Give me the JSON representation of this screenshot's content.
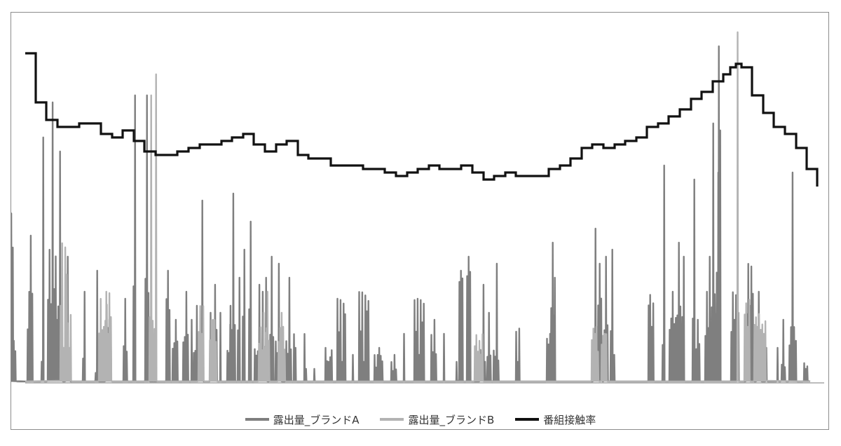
{
  "chart_data": {
    "type": "line",
    "title": "",
    "xlabel": "",
    "ylabel": "",
    "grid": false,
    "legend_position": "bottom",
    "axes_labels_shown": false,
    "ylim": [
      0,
      100
    ],
    "series": [
      {
        "name": "露出量_ブランドA",
        "color": "#7f7f7f",
        "style": "spiky",
        "bursts": [
          [
            5,
            8,
            22,
            50
          ],
          [
            3,
            16,
            12,
            14
          ],
          [
            4,
            38,
            42,
            26
          ],
          [
            2,
            58,
            70,
            10
          ],
          [
            6,
            67,
            80,
            38
          ],
          [
            4,
            75,
            18,
            22
          ],
          [
            3,
            82,
            66,
            6
          ],
          [
            3,
            93,
            36,
            16
          ],
          [
            2,
            117,
            26,
            10
          ],
          [
            2,
            135,
            32,
            4
          ],
          [
            4,
            150,
            18,
            16
          ],
          [
            3,
            175,
            24,
            14
          ],
          [
            2,
            189,
            82,
            36
          ],
          [
            3,
            206,
            82,
            38
          ],
          [
            3,
            236,
            32,
            30
          ],
          [
            4,
            245,
            18,
            12
          ],
          [
            4,
            260,
            26,
            14
          ],
          [
            1,
            272,
            18,
            8
          ],
          [
            4,
            275,
            22,
            10
          ],
          [
            2,
            285,
            52,
            10
          ],
          [
            1,
            299,
            20,
            22
          ],
          [
            4,
            301,
            28,
            16
          ],
          [
            1,
            313,
            20,
            26
          ],
          [
            5,
            323,
            22,
            10
          ],
          [
            4,
            327,
            54,
            18
          ],
          [
            2,
            338,
            30,
            16
          ],
          [
            2,
            345,
            38,
            20
          ],
          [
            2,
            354,
            46,
            22
          ],
          [
            6,
            362,
            28,
            10
          ],
          [
            5,
            369,
            26,
            12
          ],
          [
            2,
            376,
            30,
            10
          ],
          [
            3,
            384,
            36,
            14
          ],
          [
            4,
            392,
            34,
            12
          ],
          [
            4,
            407,
            30,
            12
          ],
          [
            2,
            418,
            10,
            14
          ],
          [
            2,
            433,
            4,
            14
          ],
          [
            1,
            447,
            4,
            0
          ],
          [
            5,
            463,
            6,
            10
          ],
          [
            6,
            480,
            6,
            24
          ],
          [
            1,
            502,
            8,
            4
          ],
          [
            7,
            511,
            6,
            26
          ],
          [
            6,
            533,
            10,
            8
          ],
          [
            4,
            557,
            8,
            6
          ],
          [
            1,
            575,
            14,
            0
          ],
          [
            7,
            590,
            8,
            24
          ],
          [
            4,
            614,
            18,
            14
          ],
          [
            1,
            632,
            14,
            22
          ],
          [
            1,
            650,
            6,
            4
          ],
          [
            3,
            654,
            32,
            30
          ],
          [
            3,
            665,
            36,
            32
          ],
          [
            4,
            684,
            28,
            10
          ],
          [
            3,
            694,
            20,
            8
          ],
          [
            4,
            703,
            34,
            10
          ],
          [
            3,
            735,
            6,
            16
          ],
          [
            4,
            779,
            14,
            14
          ],
          [
            2,
            785,
            40,
            24
          ],
          [
            2,
            788,
            30,
            22
          ],
          [
            2,
            846,
            44,
            12
          ],
          [
            3,
            852,
            34,
            26
          ],
          [
            3,
            861,
            36,
            18
          ],
          [
            2,
            870,
            38,
            18
          ],
          [
            1,
            875,
            8,
            8
          ],
          [
            4,
            924,
            16,
            28
          ],
          [
            2,
            944,
            62,
            14
          ],
          [
            5,
            954,
            26,
            20
          ],
          [
            3,
            965,
            40,
            26
          ],
          [
            2,
            972,
            36,
            26
          ],
          [
            2,
            987,
            58,
            26
          ],
          [
            3,
            992,
            18,
            14
          ],
          [
            2,
            1005,
            26,
            20
          ],
          [
            2,
            1009,
            36,
            24
          ],
          [
            3,
            1014,
            74,
            34
          ],
          [
            4,
            1019,
            60,
            32
          ],
          [
            2,
            1022,
            96,
            16
          ],
          [
            2,
            1024,
            72,
            18
          ],
          [
            4,
            1042,
            18,
            26
          ],
          [
            2,
            1050,
            20,
            16
          ],
          [
            5,
            1064,
            22,
            34
          ],
          [
            3,
            1079,
            26,
            24
          ],
          [
            1,
            1092,
            10,
            8
          ],
          [
            1,
            1108,
            10,
            10
          ],
          [
            3,
            1114,
            18,
            8
          ],
          [
            4,
            1125,
            60,
            16
          ],
          [
            2,
            1132,
            12,
            10
          ],
          [
            3,
            1146,
            4,
            8
          ]
        ]
      },
      {
        "name": "露出量_ブランドB",
        "color": "#b3b3b3",
        "style": "spiky",
        "bursts": [
          [
            5,
            85,
            10,
            40
          ],
          [
            3,
            95,
            10,
            30
          ],
          [
            6,
            140,
            16,
            24
          ],
          [
            5,
            148,
            14,
            26
          ],
          [
            3,
            212,
            82,
            30
          ],
          [
            2,
            219,
            88,
            24
          ],
          [
            4,
            282,
            14,
            22
          ],
          [
            5,
            298,
            18,
            18
          ],
          [
            7,
            368,
            20,
            16
          ],
          [
            3,
            378,
            26,
            20
          ],
          [
            5,
            396,
            20,
            16
          ],
          [
            6,
            676,
            12,
            14
          ],
          [
            5,
            843,
            14,
            16
          ],
          [
            4,
            857,
            14,
            14
          ],
          [
            1,
            1051,
            100,
            10
          ],
          [
            4,
            1061,
            16,
            24
          ],
          [
            5,
            1075,
            16,
            20
          ],
          [
            4,
            1084,
            14,
            18
          ]
        ]
      },
      {
        "name": "番組接触率",
        "color": "#111111",
        "style": "step",
        "points": [
          [
            35,
            94
          ],
          [
            50,
            80
          ],
          [
            65,
            75
          ],
          [
            81,
            73
          ],
          [
            97,
            73
          ],
          [
            112,
            74
          ],
          [
            128,
            74
          ],
          [
            143,
            71
          ],
          [
            159,
            70
          ],
          [
            174,
            72
          ],
          [
            190,
            69
          ],
          [
            205,
            66
          ],
          [
            221,
            65
          ],
          [
            237,
            65
          ],
          [
            252,
            66
          ],
          [
            268,
            67
          ],
          [
            284,
            68
          ],
          [
            299,
            68
          ],
          [
            315,
            69
          ],
          [
            330,
            70
          ],
          [
            346,
            71
          ],
          [
            361,
            68
          ],
          [
            377,
            66
          ],
          [
            393,
            68
          ],
          [
            408,
            69
          ],
          [
            424,
            65
          ],
          [
            439,
            64
          ],
          [
            455,
            64
          ],
          [
            471,
            62
          ],
          [
            486,
            62
          ],
          [
            502,
            62
          ],
          [
            517,
            61
          ],
          [
            533,
            61
          ],
          [
            548,
            60
          ],
          [
            564,
            59
          ],
          [
            580,
            60
          ],
          [
            595,
            61
          ],
          [
            611,
            62
          ],
          [
            626,
            61
          ],
          [
            642,
            61
          ],
          [
            657,
            62
          ],
          [
            673,
            60
          ],
          [
            689,
            58
          ],
          [
            704,
            59
          ],
          [
            720,
            60
          ],
          [
            735,
            59
          ],
          [
            751,
            59
          ],
          [
            767,
            59
          ],
          [
            782,
            61
          ],
          [
            798,
            62
          ],
          [
            813,
            64
          ],
          [
            829,
            67
          ],
          [
            844,
            68
          ],
          [
            860,
            67
          ],
          [
            876,
            68
          ],
          [
            891,
            69
          ],
          [
            907,
            70
          ],
          [
            922,
            73
          ],
          [
            938,
            74
          ],
          [
            953,
            76
          ],
          [
            969,
            78
          ],
          [
            985,
            81
          ],
          [
            1000,
            83
          ],
          [
            1016,
            86
          ],
          [
            1031,
            88
          ],
          [
            1041,
            90
          ],
          [
            1049,
            91
          ],
          [
            1057,
            90
          ],
          [
            1072,
            82
          ],
          [
            1088,
            77
          ],
          [
            1103,
            73
          ],
          [
            1119,
            71
          ],
          [
            1135,
            67
          ],
          [
            1150,
            61
          ],
          [
            1165,
            56
          ]
        ]
      }
    ]
  }
}
